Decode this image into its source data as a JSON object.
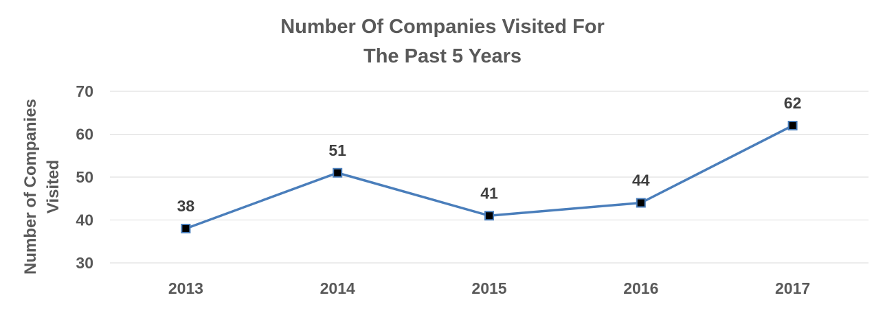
{
  "chart_data": {
    "type": "line",
    "title": "Number Of Companies Visited For The Past 5 Years",
    "title_lines": [
      "Number Of Companies Visited For",
      "The Past 5 Years"
    ],
    "xlabel": "",
    "ylabel": "Number of Companies Visited",
    "ylabel_lines": [
      "Number of Companies",
      "Visited"
    ],
    "categories": [
      "2013",
      "2014",
      "2015",
      "2016",
      "2017"
    ],
    "series": [
      {
        "values": [
          38,
          51,
          41,
          44,
          62
        ],
        "line_color": "#4a7ebb",
        "marker_fill": "#000000",
        "marker_edge": "#4a7ebb"
      }
    ],
    "ylim": [
      30,
      70
    ],
    "yticks": [
      "30",
      "40",
      "50",
      "60",
      "70"
    ],
    "data_labels": [
      "38",
      "51",
      "41",
      "44",
      "62"
    ],
    "grid": true,
    "legend": "none"
  }
}
